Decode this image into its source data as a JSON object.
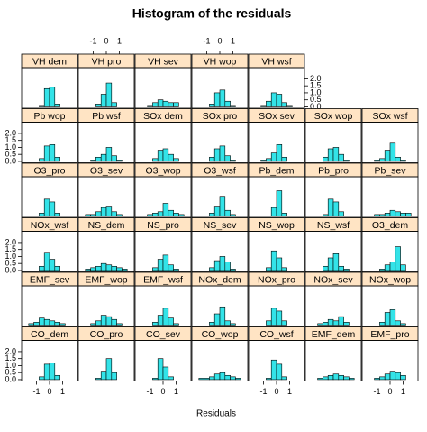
{
  "chart_data": {
    "type": "histogram",
    "title": "Histogram of the residuals",
    "x_label": "Residuals",
    "bar_color": "#33e3e8",
    "strip_color": "#ffe4c4",
    "bins": [
      -2,
      -1.6,
      -1.2,
      -0.8,
      -0.4,
      0,
      0.4,
      0.8,
      1.2,
      1.6,
      2
    ],
    "xlim": [
      -2,
      2
    ],
    "xticks": [
      -1,
      0,
      1
    ],
    "ylim": [
      -0.1,
      2.8
    ],
    "yticks": [
      {
        "value": 0,
        "label": "0.0"
      },
      {
        "value": 0.5,
        "label": "0.5"
      },
      {
        "value": 1,
        "label": "1.0"
      },
      {
        "value": 1.5,
        "label": "1.5"
      },
      {
        "value": 2,
        "label": "2.0"
      }
    ],
    "layout_rows": [
      [
        0,
        1,
        2,
        3,
        4
      ],
      [
        5,
        6,
        7,
        8,
        9,
        10,
        11
      ],
      [
        12,
        13,
        14,
        15,
        16,
        17,
        18
      ],
      [
        19,
        20,
        21,
        22,
        23,
        24,
        25
      ],
      [
        26,
        27,
        28,
        29,
        30,
        31,
        32
      ],
      [
        33,
        34,
        35,
        36,
        37,
        38,
        39
      ]
    ],
    "panels": [
      {
        "name": "VH dem",
        "values": [
          0,
          0,
          0,
          0.1,
          1.3,
          1.4,
          0.2,
          0,
          0,
          0
        ]
      },
      {
        "name": "VH pro",
        "values": [
          0,
          0,
          0,
          0.2,
          0.9,
          1.7,
          0.3,
          0,
          0,
          0
        ]
      },
      {
        "name": "VH sev",
        "values": [
          0,
          0,
          0.1,
          0.3,
          0.5,
          0.4,
          0.3,
          0.3,
          0,
          0
        ]
      },
      {
        "name": "VH wop",
        "values": [
          0,
          0,
          0,
          0.2,
          1.0,
          1.2,
          0.4,
          0.1,
          0,
          0
        ]
      },
      {
        "name": "VH wsf",
        "values": [
          0,
          0,
          0.1,
          0.4,
          1.0,
          0.9,
          0.3,
          0.1,
          0,
          0
        ]
      },
      {
        "name": "Pb wop",
        "values": [
          0,
          0,
          0,
          0.2,
          1.1,
          1.2,
          0.3,
          0,
          0,
          0
        ]
      },
      {
        "name": "Pb wsf",
        "values": [
          0,
          0,
          0.1,
          0.3,
          0.5,
          1.0,
          0.4,
          0.1,
          0,
          0
        ]
      },
      {
        "name": "SOx dem",
        "values": [
          0,
          0,
          0,
          0.2,
          0.8,
          0.9,
          0.5,
          0.2,
          0,
          0
        ]
      },
      {
        "name": "SOx pro",
        "values": [
          0,
          0,
          0,
          0.3,
          0.9,
          1.1,
          0.4,
          0.1,
          0,
          0
        ]
      },
      {
        "name": "SOx sev",
        "values": [
          0,
          0,
          0.1,
          0.2,
          0.6,
          1.2,
          0.3,
          0,
          0,
          0
        ]
      },
      {
        "name": "SOx wop",
        "values": [
          0,
          0,
          0,
          0.3,
          0.9,
          1.0,
          0.5,
          0.1,
          0,
          0
        ]
      },
      {
        "name": "SOx wsf",
        "values": [
          0,
          0,
          0.1,
          0.2,
          0.8,
          1.3,
          0.3,
          0.1,
          0,
          0
        ]
      },
      {
        "name": "O3_pro",
        "values": [
          0,
          0,
          0,
          0.2,
          1.2,
          1.0,
          0.2,
          0,
          0,
          0
        ]
      },
      {
        "name": "O3_sev",
        "values": [
          0,
          0.1,
          0.1,
          0.3,
          0.6,
          0.7,
          0.3,
          0.1,
          0,
          0
        ]
      },
      {
        "name": "O3_wop",
        "values": [
          0,
          0,
          0.1,
          0.2,
          0.3,
          0.9,
          0.4,
          0.2,
          0.1,
          0
        ]
      },
      {
        "name": "O3_wsf",
        "values": [
          0,
          0,
          0,
          0.2,
          0.7,
          1.4,
          0.4,
          0.1,
          0,
          0
        ]
      },
      {
        "name": "Pb_dem",
        "values": [
          0,
          0,
          0,
          0,
          0.6,
          1.8,
          0.2,
          0,
          0,
          0
        ]
      },
      {
        "name": "Pb_pro",
        "values": [
          0,
          0,
          0,
          0.1,
          1.2,
          1.0,
          0.3,
          0,
          0,
          0
        ]
      },
      {
        "name": "Pb_sev",
        "values": [
          0,
          0,
          0.1,
          0.1,
          0.2,
          0.4,
          0.3,
          0.2,
          0.2,
          0
        ]
      },
      {
        "name": "NOx_wsf",
        "values": [
          0,
          0,
          0,
          0.3,
          1.3,
          0.8,
          0.3,
          0,
          0,
          0
        ]
      },
      {
        "name": "NS_dem",
        "values": [
          0,
          0.1,
          0.2,
          0.3,
          0.5,
          0.4,
          0.3,
          0.2,
          0.1,
          0
        ]
      },
      {
        "name": "NS_pro",
        "values": [
          0,
          0,
          0,
          0.2,
          0.8,
          1.1,
          0.4,
          0.1,
          0,
          0
        ]
      },
      {
        "name": "NS_sev",
        "values": [
          0,
          0,
          0,
          0.2,
          0.7,
          1.0,
          0.6,
          0.1,
          0,
          0
        ]
      },
      {
        "name": "NS_wop",
        "values": [
          0,
          0,
          0,
          0.2,
          1.4,
          0.9,
          0.2,
          0,
          0,
          0
        ]
      },
      {
        "name": "NS_wsf",
        "values": [
          0,
          0,
          0,
          0.3,
          0.9,
          1.2,
          0.3,
          0.1,
          0,
          0
        ]
      },
      {
        "name": "O3_dem",
        "values": [
          0,
          0,
          0,
          0.1,
          0.4,
          0.6,
          1.7,
          0.4,
          0,
          0
        ]
      },
      {
        "name": "EMF_sev",
        "values": [
          0,
          0.1,
          0.2,
          0.5,
          0.4,
          0.3,
          0.2,
          0.1,
          0,
          0
        ]
      },
      {
        "name": "EMF_wop",
        "values": [
          0,
          0,
          0.1,
          0.3,
          0.7,
          0.6,
          0.4,
          0.1,
          0,
          0
        ]
      },
      {
        "name": "EMF_wsf",
        "values": [
          0,
          0,
          0,
          0.2,
          0.7,
          1.2,
          0.5,
          0.1,
          0,
          0
        ]
      },
      {
        "name": "NOx_dem",
        "values": [
          0,
          0,
          0,
          0.2,
          0.8,
          1.3,
          0.3,
          0.1,
          0,
          0
        ]
      },
      {
        "name": "NOx_pro",
        "values": [
          0,
          0,
          0,
          0.3,
          1.2,
          1.0,
          0.3,
          0,
          0,
          0
        ]
      },
      {
        "name": "NOx_sev",
        "values": [
          0,
          0,
          0.1,
          0.2,
          0.4,
          0.3,
          0.6,
          0.2,
          0,
          0
        ]
      },
      {
        "name": "NOx_wop",
        "values": [
          0,
          0,
          0,
          0.2,
          0.9,
          1.1,
          0.3,
          0.1,
          0,
          0
        ]
      },
      {
        "name": "CO_dem",
        "values": [
          0,
          0,
          0,
          0.2,
          1.1,
          1.2,
          0.3,
          0,
          0,
          0
        ]
      },
      {
        "name": "CO_pro",
        "values": [
          0,
          0,
          0,
          0.1,
          0.6,
          1.5,
          0.5,
          0,
          0,
          0
        ]
      },
      {
        "name": "CO_sev",
        "values": [
          0,
          0,
          0,
          0.1,
          1.5,
          0.9,
          0.2,
          0,
          0,
          0
        ]
      },
      {
        "name": "CO_wop",
        "values": [
          0,
          0.1,
          0.1,
          0.2,
          0.4,
          0.5,
          0.3,
          0.2,
          0.1,
          0
        ]
      },
      {
        "name": "CO_wsf",
        "values": [
          0,
          0,
          0,
          0.1,
          1.4,
          1.1,
          0.2,
          0,
          0,
          0
        ]
      },
      {
        "name": "EMF_dem",
        "values": [
          0,
          0,
          0.1,
          0.2,
          0.3,
          0.4,
          0.3,
          0.2,
          0.1,
          0
        ]
      },
      {
        "name": "EMF_pro",
        "values": [
          0,
          0,
          0.1,
          0.2,
          0.4,
          0.6,
          0.5,
          0.3,
          0,
          0
        ]
      }
    ]
  }
}
